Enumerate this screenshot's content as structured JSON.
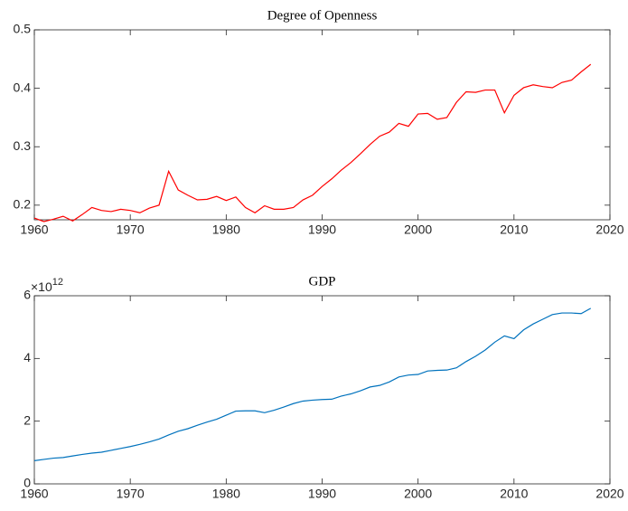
{
  "chart_data": [
    {
      "type": "line",
      "title": "Degree of Openness",
      "x": [
        1960,
        1961,
        1962,
        1963,
        1964,
        1965,
        1966,
        1967,
        1968,
        1969,
        1970,
        1971,
        1972,
        1973,
        1974,
        1975,
        1976,
        1977,
        1978,
        1979,
        1980,
        1981,
        1982,
        1983,
        1984,
        1985,
        1986,
        1987,
        1988,
        1989,
        1990,
        1991,
        1992,
        1993,
        1994,
        1995,
        1996,
        1997,
        1998,
        1999,
        2000,
        2001,
        2002,
        2003,
        2004,
        2005,
        2006,
        2007,
        2008,
        2009,
        2010,
        2011,
        2012,
        2013,
        2014,
        2015,
        2016,
        2017,
        2018
      ],
      "series": [
        {
          "color": "#ff0000",
          "values": [
            0.178,
            0.172,
            0.176,
            0.181,
            0.173,
            0.184,
            0.196,
            0.191,
            0.189,
            0.193,
            0.191,
            0.187,
            0.195,
            0.2,
            0.258,
            0.226,
            0.217,
            0.209,
            0.21,
            0.215,
            0.208,
            0.214,
            0.196,
            0.187,
            0.199,
            0.193,
            0.193,
            0.196,
            0.209,
            0.217,
            0.232,
            0.245,
            0.26,
            0.273,
            0.288,
            0.304,
            0.318,
            0.325,
            0.34,
            0.335,
            0.356,
            0.357,
            0.347,
            0.35,
            0.376,
            0.394,
            0.393,
            0.397,
            0.397,
            0.358,
            0.388,
            0.401,
            0.406,
            0.403,
            0.401,
            0.41,
            0.414,
            0.428,
            0.441
          ]
        }
      ],
      "xlim": [
        1960,
        2020
      ],
      "xticks": [
        1960,
        1970,
        1980,
        1990,
        2000,
        2010,
        2020
      ],
      "ylim": [
        0.175,
        0.5
      ],
      "yticks": [
        0.2,
        0.3,
        0.4,
        0.5
      ]
    },
    {
      "type": "line",
      "title": "GDP",
      "y_multiplier": {
        "base": "×10",
        "exponent": "12"
      },
      "x": [
        1960,
        1961,
        1962,
        1963,
        1964,
        1965,
        1966,
        1967,
        1968,
        1969,
        1970,
        1971,
        1972,
        1973,
        1974,
        1975,
        1976,
        1977,
        1978,
        1979,
        1980,
        1981,
        1982,
        1983,
        1984,
        1985,
        1986,
        1987,
        1988,
        1989,
        1990,
        1991,
        1992,
        1993,
        1994,
        1995,
        1996,
        1997,
        1998,
        1999,
        2000,
        2001,
        2002,
        2003,
        2004,
        2005,
        2006,
        2007,
        2008,
        2009,
        2010,
        2011,
        2012,
        2013,
        2014,
        2015,
        2016,
        2017,
        2018
      ],
      "series": [
        {
          "color": "#0072bd",
          "values": [
            740000000000.0,
            780000000000.0,
            820000000000.0,
            840000000000.0,
            890000000000.0,
            940000000000.0,
            980000000000.0,
            1010000000000.0,
            1070000000000.0,
            1130000000000.0,
            1190000000000.0,
            1260000000000.0,
            1340000000000.0,
            1430000000000.0,
            1560000000000.0,
            1680000000000.0,
            1760000000000.0,
            1870000000000.0,
            1970000000000.0,
            2060000000000.0,
            2190000000000.0,
            2320000000000.0,
            2330000000000.0,
            2330000000000.0,
            2270000000000.0,
            2350000000000.0,
            2450000000000.0,
            2560000000000.0,
            2640000000000.0,
            2670000000000.0,
            2690000000000.0,
            2700000000000.0,
            2800000000000.0,
            2870000000000.0,
            2970000000000.0,
            3090000000000.0,
            3140000000000.0,
            3250000000000.0,
            3410000000000.0,
            3470000000000.0,
            3490000000000.0,
            3600000000000.0,
            3620000000000.0,
            3630000000000.0,
            3700000000000.0,
            3900000000000.0,
            4070000000000.0,
            4270000000000.0,
            4520000000000.0,
            4720000000000.0,
            4630000000000.0,
            4910000000000.0,
            5100000000000.0,
            5250000000000.0,
            5400000000000.0,
            5450000000000.0,
            5450000000000.0,
            5430000000000.0,
            5600000000000.0
          ]
        }
      ],
      "xlim": [
        1960,
        2020
      ],
      "xticks": [
        1960,
        1970,
        1980,
        1990,
        2000,
        2010,
        2020
      ],
      "ylim": [
        0,
        6000000000000.0
      ],
      "yticks": [
        0,
        {
          "value": 2000000000000.0,
          "label": "2"
        },
        {
          "value": 4000000000000.0,
          "label": "4"
        },
        {
          "value": 6000000000000.0,
          "label": "6"
        }
      ]
    }
  ]
}
